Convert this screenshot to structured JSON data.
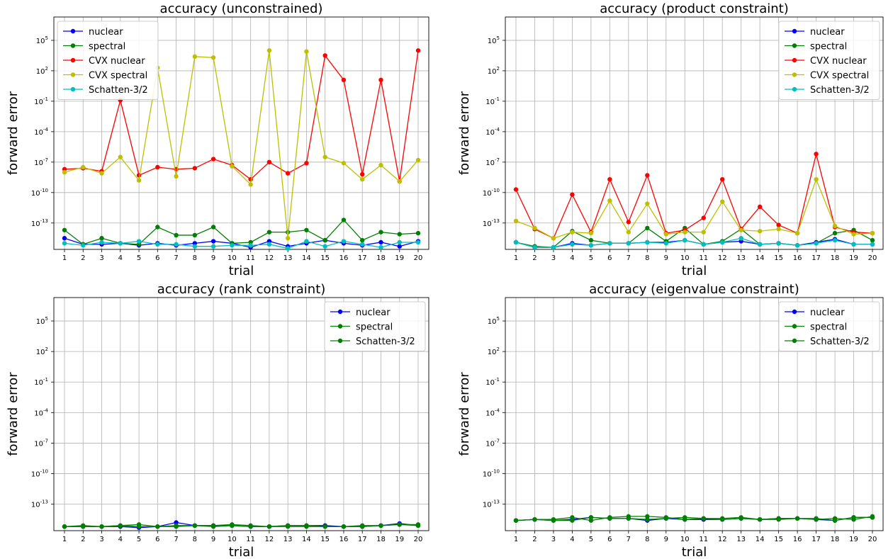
{
  "colors": {
    "nuclear": "#0000ff",
    "spectral": "#008000",
    "CVX nuclear": "#ff0000",
    "CVX spectral": "#bfbf00",
    "Schatten-3/2": "#00bfbf"
  },
  "chart_data": [
    {
      "type": "line",
      "title": "accuracy (unconstrained)",
      "xlabel": "trial",
      "ylabel": "forward error",
      "yscale": "log",
      "ylim_exp": [
        -15.6,
        7.3
      ],
      "ytick_exps": [
        -13,
        -10,
        -7,
        -4,
        -1,
        2,
        5
      ],
      "legend_position": "upper-left",
      "grid": true,
      "x": [
        1,
        2,
        3,
        4,
        5,
        6,
        7,
        8,
        9,
        10,
        11,
        12,
        13,
        14,
        15,
        16,
        17,
        18,
        19,
        20
      ],
      "series": [
        {
          "name": "nuclear",
          "color_key": "nuclear",
          "log10_values": [
            -14.5,
            -15.1,
            -15.1,
            -15.0,
            -15.2,
            -15.0,
            -15.2,
            -15.0,
            -14.8,
            -15.0,
            -15.4,
            -14.8,
            -15.3,
            -15.0,
            -14.7,
            -15.0,
            -15.2,
            -14.9,
            -15.3,
            -14.8
          ]
        },
        {
          "name": "spectral",
          "color_key": "spectral",
          "log10_values": [
            -13.7,
            -15.1,
            -14.5,
            -15.0,
            -15.1,
            -13.4,
            -14.2,
            -14.2,
            -13.4,
            -15.0,
            -14.9,
            -13.9,
            -13.9,
            -13.7,
            -14.7,
            -12.7,
            -14.7,
            -13.9,
            -14.1,
            -14.0
          ]
        },
        {
          "name": "CVX nuclear",
          "color_key": "CVX nuclear",
          "log10_values": [
            -7.7,
            -7.6,
            -7.9,
            -0.9,
            -8.3,
            -7.5,
            -7.7,
            -7.6,
            -6.7,
            -7.3,
            -8.7,
            -7.0,
            -8.1,
            -7.1,
            3.5,
            1.1,
            -8.2,
            1.1,
            -8.9,
            4.0
          ]
        },
        {
          "name": "CVX spectral",
          "color_key": "CVX spectral",
          "log10_values": [
            -8.0,
            -7.5,
            -8.1,
            -6.5,
            -8.8,
            2.3,
            -8.4,
            3.4,
            3.3,
            -7.4,
            -9.2,
            4.0,
            -14.5,
            3.9,
            -6.5,
            -7.1,
            -8.7,
            -7.3,
            -8.9,
            -6.8
          ]
        },
        {
          "name": "Schatten-3/2",
          "color_key": "Schatten-3/2",
          "log10_values": [
            -15.0,
            -15.2,
            -14.9,
            -15.0,
            -14.8,
            -15.1,
            -15.1,
            -15.3,
            -15.3,
            -15.2,
            -15.2,
            -15.1,
            -15.5,
            -14.8,
            -15.3,
            -14.8,
            -15.1,
            -15.4,
            -14.9,
            -14.9
          ]
        }
      ]
    },
    {
      "type": "line",
      "title": "accuracy (product constraint)",
      "xlabel": "trial",
      "ylabel": "forward error",
      "yscale": "log",
      "ylim_exp": [
        -15.6,
        7.3
      ],
      "ytick_exps": [
        -13,
        -10,
        -7,
        -4,
        -1,
        2,
        5
      ],
      "legend_position": "upper-right",
      "grid": true,
      "x": [
        1,
        2,
        3,
        4,
        5,
        6,
        7,
        8,
        9,
        10,
        11,
        12,
        13,
        14,
        15,
        16,
        17,
        18,
        19,
        20
      ],
      "series": [
        {
          "name": "nuclear",
          "color_key": "nuclear",
          "log10_values": [
            -14.9,
            -15.4,
            -15.4,
            -15.0,
            -15.2,
            -15.0,
            -15.0,
            -14.9,
            -14.9,
            -14.7,
            -15.1,
            -14.9,
            -14.8,
            -15.1,
            -15.0,
            -15.2,
            -14.9,
            -14.6,
            -15.1,
            -15.1
          ]
        },
        {
          "name": "spectral",
          "color_key": "spectral",
          "log10_values": [
            -14.9,
            -15.3,
            -15.4,
            -13.8,
            -14.7,
            -15.0,
            -15.0,
            -13.5,
            -14.8,
            -13.5,
            -15.1,
            -14.8,
            -13.6,
            -15.1,
            -15.0,
            -15.2,
            -15.0,
            -14.0,
            -13.7,
            -14.7
          ]
        },
        {
          "name": "CVX nuclear",
          "color_key": "CVX nuclear",
          "log10_values": [
            -9.7,
            -13.6,
            -14.5,
            -10.2,
            -13.9,
            -8.7,
            -12.9,
            -8.3,
            -14.0,
            -13.7,
            -12.5,
            -8.7,
            -13.6,
            -11.4,
            -13.2,
            -14.0,
            -6.2,
            -13.4,
            -13.9,
            -14.0
          ]
        },
        {
          "name": "CVX spectral",
          "color_key": "CVX spectral",
          "log10_values": [
            -12.8,
            -13.5,
            -14.5,
            -13.9,
            -14.0,
            -10.8,
            -13.9,
            -11.1,
            -14.1,
            -13.9,
            -13.9,
            -10.9,
            -13.7,
            -13.8,
            -13.6,
            -14.0,
            -8.7,
            -13.3,
            -14.1,
            -14.0
          ]
        },
        {
          "name": "Schatten-3/2",
          "color_key": "Schatten-3/2",
          "log10_values": [
            -14.9,
            -15.4,
            -15.4,
            -15.1,
            -15.2,
            -15.0,
            -15.0,
            -14.9,
            -15.0,
            -14.7,
            -15.1,
            -14.9,
            -14.5,
            -15.1,
            -15.0,
            -15.2,
            -15.0,
            -14.7,
            -15.1,
            -15.1
          ]
        }
      ]
    },
    {
      "type": "line",
      "title": "accuracy (rank constraint)",
      "xlabel": "trial",
      "ylabel": "forward error",
      "yscale": "log",
      "ylim_exp": [
        -15.6,
        7.3
      ],
      "ytick_exps": [
        -13,
        -10,
        -7,
        -4,
        -1,
        2,
        5
      ],
      "legend_position": "upper-right",
      "grid": true,
      "x": [
        1,
        2,
        3,
        4,
        5,
        6,
        7,
        8,
        9,
        10,
        11,
        12,
        13,
        14,
        15,
        16,
        17,
        18,
        19,
        20
      ],
      "series": [
        {
          "name": "nuclear",
          "color_key": "nuclear",
          "log10_values": [
            -15.2,
            -15.2,
            -15.2,
            -15.2,
            -15.3,
            -15.2,
            -14.8,
            -15.1,
            -15.1,
            -15.1,
            -15.2,
            -15.2,
            -15.1,
            -15.1,
            -15.1,
            -15.2,
            -15.2,
            -15.1,
            -14.9,
            -15.1
          ]
        },
        {
          "name": "spectral",
          "color_key": "spectral",
          "log10_values": [
            -15.2,
            -15.1,
            -15.2,
            -15.1,
            -15.2,
            -15.2,
            -15.2,
            -15.1,
            -15.2,
            -15.1,
            -15.2,
            -15.2,
            -15.2,
            -15.2,
            -15.2,
            -15.2,
            -15.2,
            -15.1,
            -15.0,
            -15.0
          ]
        },
        {
          "name": "Schatten-3/2",
          "color_key": "spectral",
          "log10_values": [
            -15.2,
            -15.2,
            -15.2,
            -15.1,
            -15.0,
            -15.2,
            -15.1,
            -15.1,
            -15.1,
            -15.0,
            -15.1,
            -15.2,
            -15.1,
            -15.1,
            -15.2,
            -15.2,
            -15.1,
            -15.1,
            -15.0,
            -15.1
          ]
        }
      ]
    },
    {
      "type": "line",
      "title": "accuracy (eigenvalue constraint)",
      "xlabel": "trial",
      "ylabel": "forward error",
      "yscale": "log",
      "ylim_exp": [
        -15.6,
        7.3
      ],
      "ytick_exps": [
        -13,
        -10,
        -7,
        -4,
        -1,
        2,
        5
      ],
      "legend_position": "upper-right",
      "grid": true,
      "x": [
        1,
        2,
        3,
        4,
        5,
        6,
        7,
        8,
        9,
        10,
        11,
        12,
        13,
        14,
        15,
        16,
        17,
        18,
        19,
        20
      ],
      "series": [
        {
          "name": "nuclear",
          "color_key": "nuclear",
          "log10_values": [
            -14.6,
            -14.5,
            -14.6,
            -14.5,
            -14.3,
            -14.4,
            -14.4,
            -14.6,
            -14.4,
            -14.5,
            -14.5,
            -14.5,
            -14.4,
            -14.5,
            -14.4,
            -14.4,
            -14.5,
            -14.6,
            -14.3,
            -14.3
          ]
        },
        {
          "name": "spectral",
          "color_key": "spectral",
          "log10_values": [
            -14.6,
            -14.5,
            -14.6,
            -14.6,
            -14.3,
            -14.4,
            -14.4,
            -14.5,
            -14.4,
            -14.3,
            -14.4,
            -14.5,
            -14.4,
            -14.5,
            -14.4,
            -14.4,
            -14.4,
            -14.6,
            -14.3,
            -14.3
          ]
        },
        {
          "name": "Schatten-3/2",
          "color_key": "spectral",
          "log10_values": [
            -14.6,
            -14.5,
            -14.5,
            -14.3,
            -14.6,
            -14.3,
            -14.2,
            -14.2,
            -14.3,
            -14.5,
            -14.4,
            -14.4,
            -14.3,
            -14.5,
            -14.5,
            -14.4,
            -14.5,
            -14.4,
            -14.5,
            -14.2
          ]
        }
      ]
    }
  ]
}
